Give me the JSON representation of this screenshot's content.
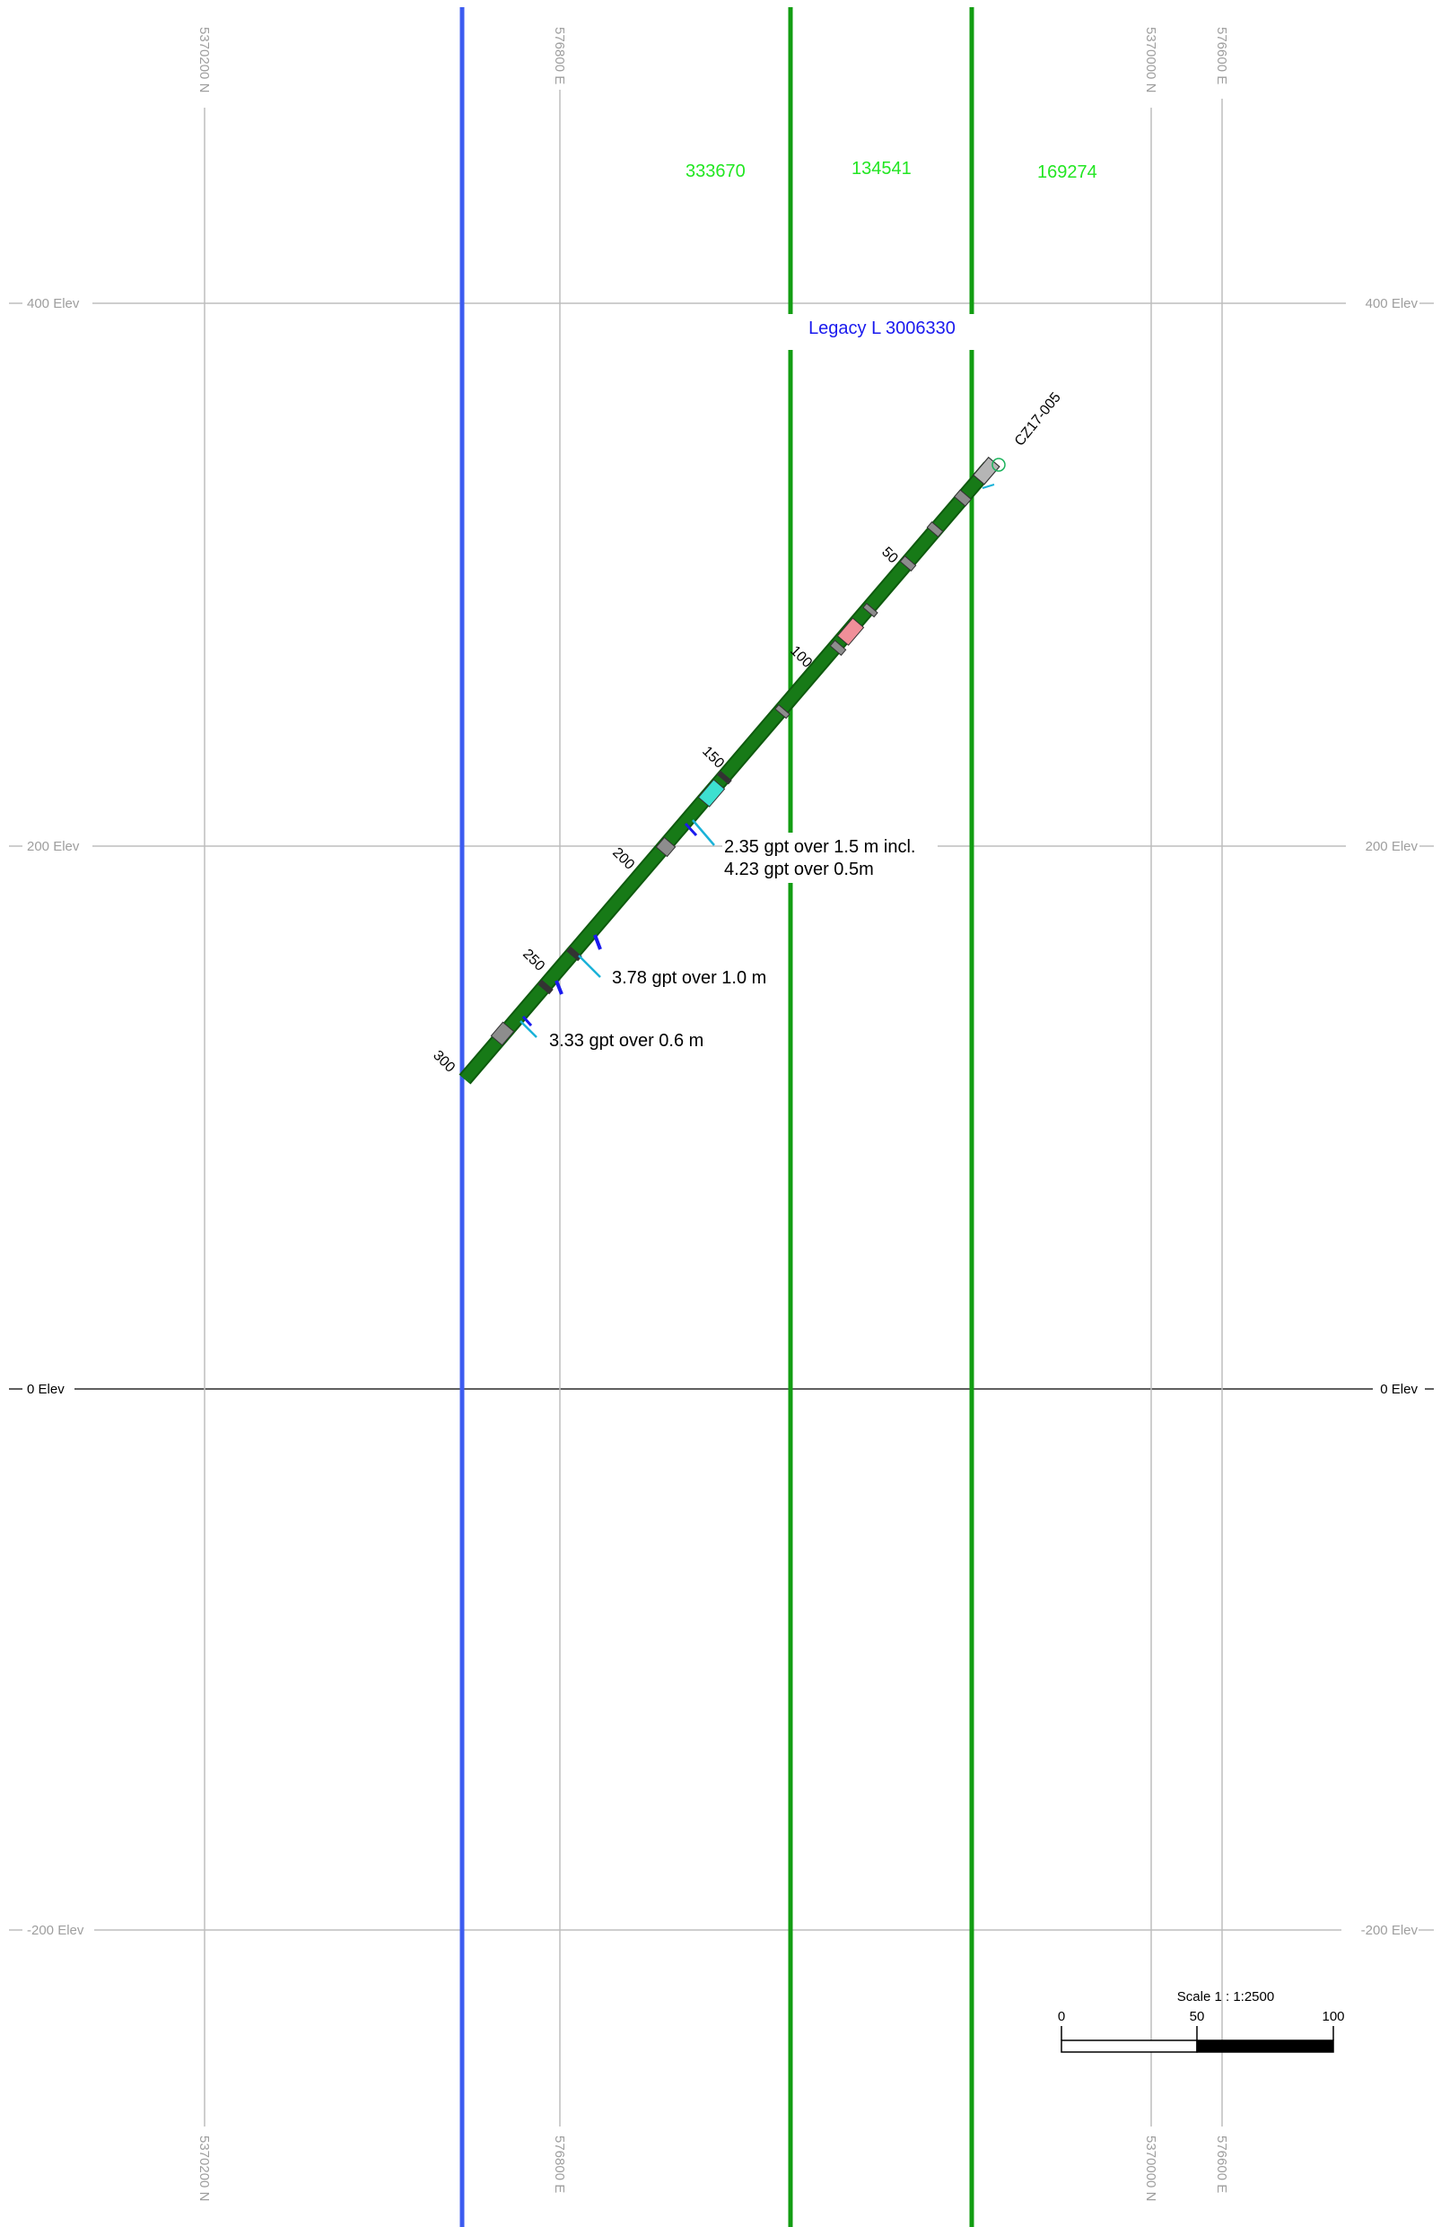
{
  "grid": {
    "northing_label": "5370200 N",
    "easting1_label": "576800 E",
    "northing2_label": "5370000 N",
    "easting2_label": "576600 E",
    "elevations": [
      {
        "label": "400 Elev",
        "value": 400
      },
      {
        "label": "200 Elev",
        "value": 200
      },
      {
        "label": "0 Elev",
        "value": 0
      },
      {
        "label": "-200 Elev",
        "value": -200
      }
    ]
  },
  "claims": {
    "left": "333670",
    "middle": "134541",
    "right": "169274",
    "legacy": "Legacy L 3006330"
  },
  "drillhole": {
    "name": "CZ17-005",
    "depth_marks": [
      "50",
      "100",
      "150",
      "200",
      "250",
      "300"
    ]
  },
  "assays": {
    "first_line1": "2.35 gpt over 1.5 m incl.",
    "first_line2": "4.23 gpt over 0.5m",
    "second": "3.78 gpt over 1.0 m",
    "third": "3.33 gpt over 0.6 m"
  },
  "scale": {
    "title": "Scale 1 : 1:2500",
    "tick_0": "0",
    "tick_50": "50",
    "tick_100": "100"
  },
  "colors": {
    "claim_line": "#129d12",
    "boundary_line": "#3d5cf0",
    "hole_core": "#177a17",
    "assay_tick": "#1ab2d8"
  }
}
